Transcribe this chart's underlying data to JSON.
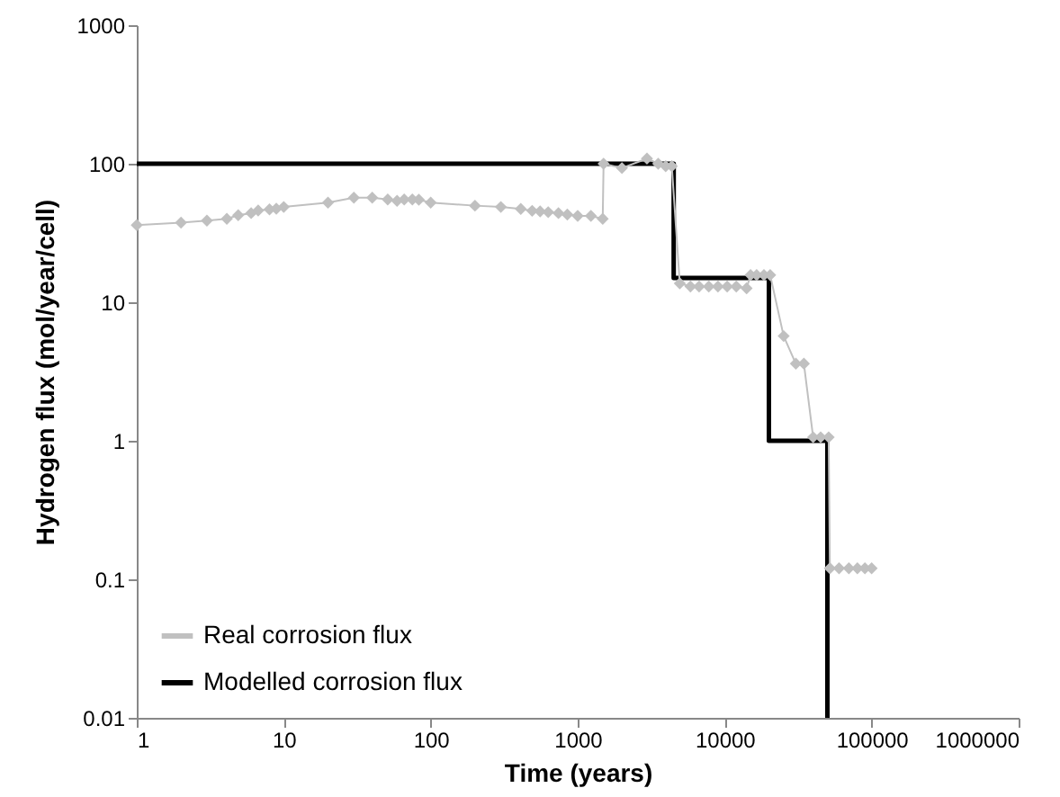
{
  "chart_data": {
    "type": "line",
    "xlabel": "Time (years)",
    "ylabel": "Hydrogen flux (mol/year/cell)",
    "log": "xy",
    "grid": false,
    "legend": "bottom left",
    "xlim": [
      1,
      1000000
    ],
    "xticks": [
      1,
      10,
      100,
      1000,
      10000,
      100000,
      1000000
    ],
    "ylim": [
      0.01,
      1000
    ],
    "yticks": [
      0.01,
      0.1,
      1,
      10,
      100,
      1000
    ],
    "series": [
      {
        "name": "Real corrosion flux",
        "color": "#c0c0c0",
        "marker": "diamond",
        "x": [
          1,
          2,
          3,
          4.1,
          4.9,
          6,
          6.7,
          8,
          8.9,
          10,
          20,
          30,
          40,
          51,
          59,
          66,
          75,
          83,
          100,
          200,
          300,
          410,
          490,
          555,
          630,
          740,
          850,
          1000,
          1230,
          1480,
          1500,
          2000,
          2960,
          3530,
          3970,
          4370,
          4950,
          5850,
          6700,
          7800,
          9000,
          10400,
          12000,
          14100,
          15000,
          16500,
          18500,
          20400,
          25200,
          30500,
          34600,
          40000,
          45000,
          51000,
          52000,
          60000,
          70000,
          80000,
          90000,
          100000
        ],
        "values": [
          36,
          37.6,
          38.8,
          40,
          42.5,
          44,
          46,
          46.8,
          47.3,
          48.7,
          52.4,
          56.9,
          56.9,
          55.2,
          54,
          55.2,
          55.2,
          55,
          52.4,
          49.8,
          48.7,
          47.2,
          45.7,
          45.3,
          44.7,
          44,
          43,
          42,
          42,
          40,
          100,
          93,
          109,
          100,
          96,
          96,
          13.7,
          13,
          13,
          13,
          13,
          13,
          13,
          12.6,
          15.7,
          15.7,
          15.7,
          15.7,
          5.7,
          3.6,
          3.6,
          1.06,
          1.06,
          1.06,
          0.12,
          0.12,
          0.12,
          0.12,
          0.12,
          0.12
        ]
      },
      {
        "name": "Modelled corrosion flux",
        "color": "#000000",
        "marker": "none",
        "x": [
          1,
          4500,
          4500,
          20000,
          20000,
          50000,
          50000
        ],
        "values": [
          100,
          100,
          15,
          15,
          1,
          1,
          0.01
        ]
      }
    ]
  }
}
